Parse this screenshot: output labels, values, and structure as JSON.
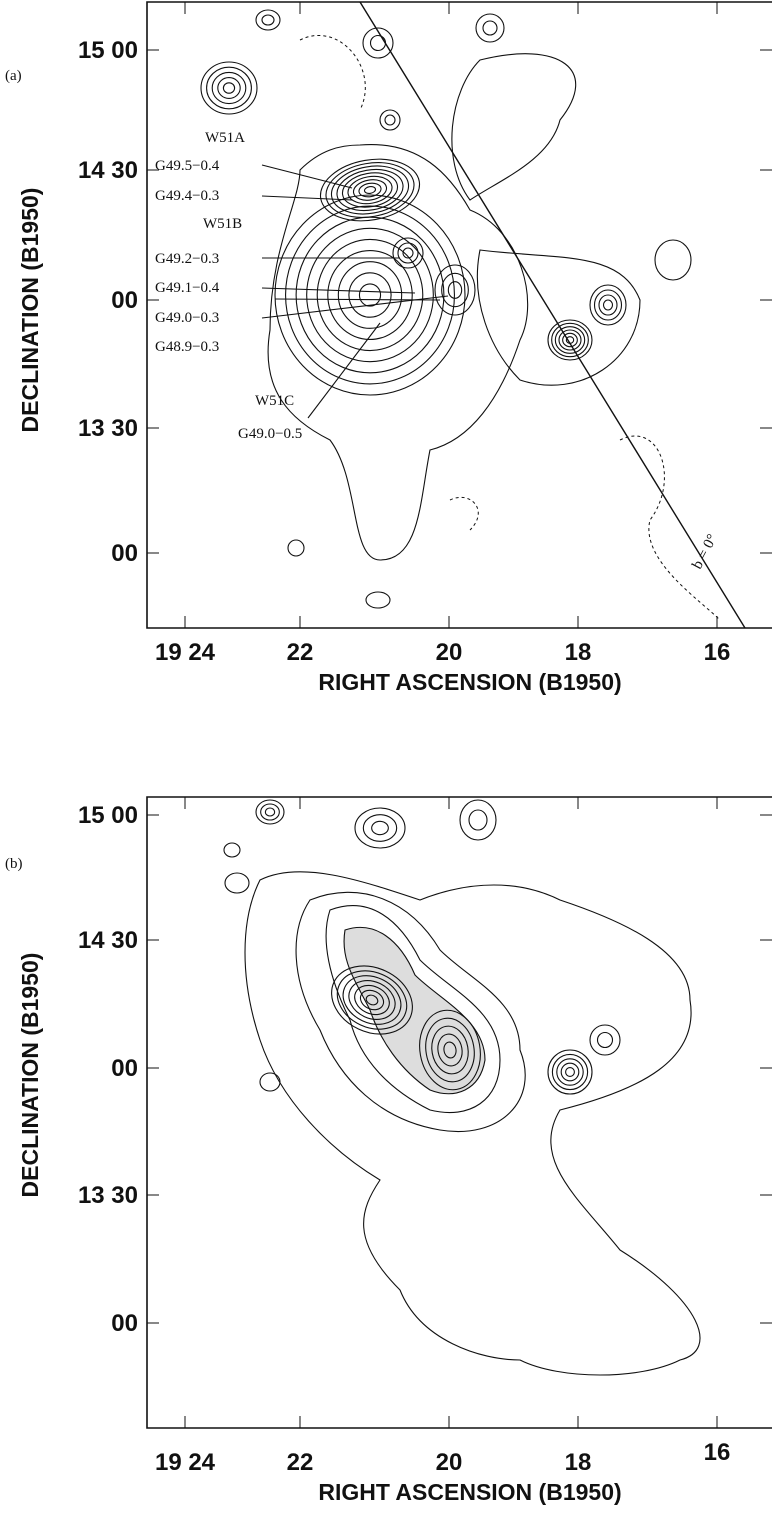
{
  "panels": [
    {
      "label": "(a)",
      "y_axis_title": "DECLINATION (B1950)",
      "y_tick_labels": [
        "15 00",
        "14 30",
        "00",
        "13 30",
        "00"
      ],
      "x_axis_title": "RIGHT ASCENSION (B1950)",
      "x_tick_labels": [
        "19 24",
        "22",
        "20",
        "18",
        "16"
      ],
      "annotations": [
        "W51A",
        "G49.5−0.4",
        "G49.4−0.3",
        "W51B",
        "G49.2−0.3",
        "G49.1−0.4",
        "G49.0−0.3",
        "G48.9−0.3",
        "W51C",
        "G49.0−0.5",
        "b = 0°"
      ]
    },
    {
      "label": "(b)",
      "y_axis_title": "DECLINATION (B1950)",
      "y_tick_labels": [
        "15 00",
        "14 30",
        "00",
        "13 30",
        "00"
      ],
      "x_axis_title": "RIGHT ASCENSION (B1950)",
      "x_tick_labels": [
        "19 24",
        "22",
        "20",
        "18",
        "16"
      ]
    }
  ]
}
